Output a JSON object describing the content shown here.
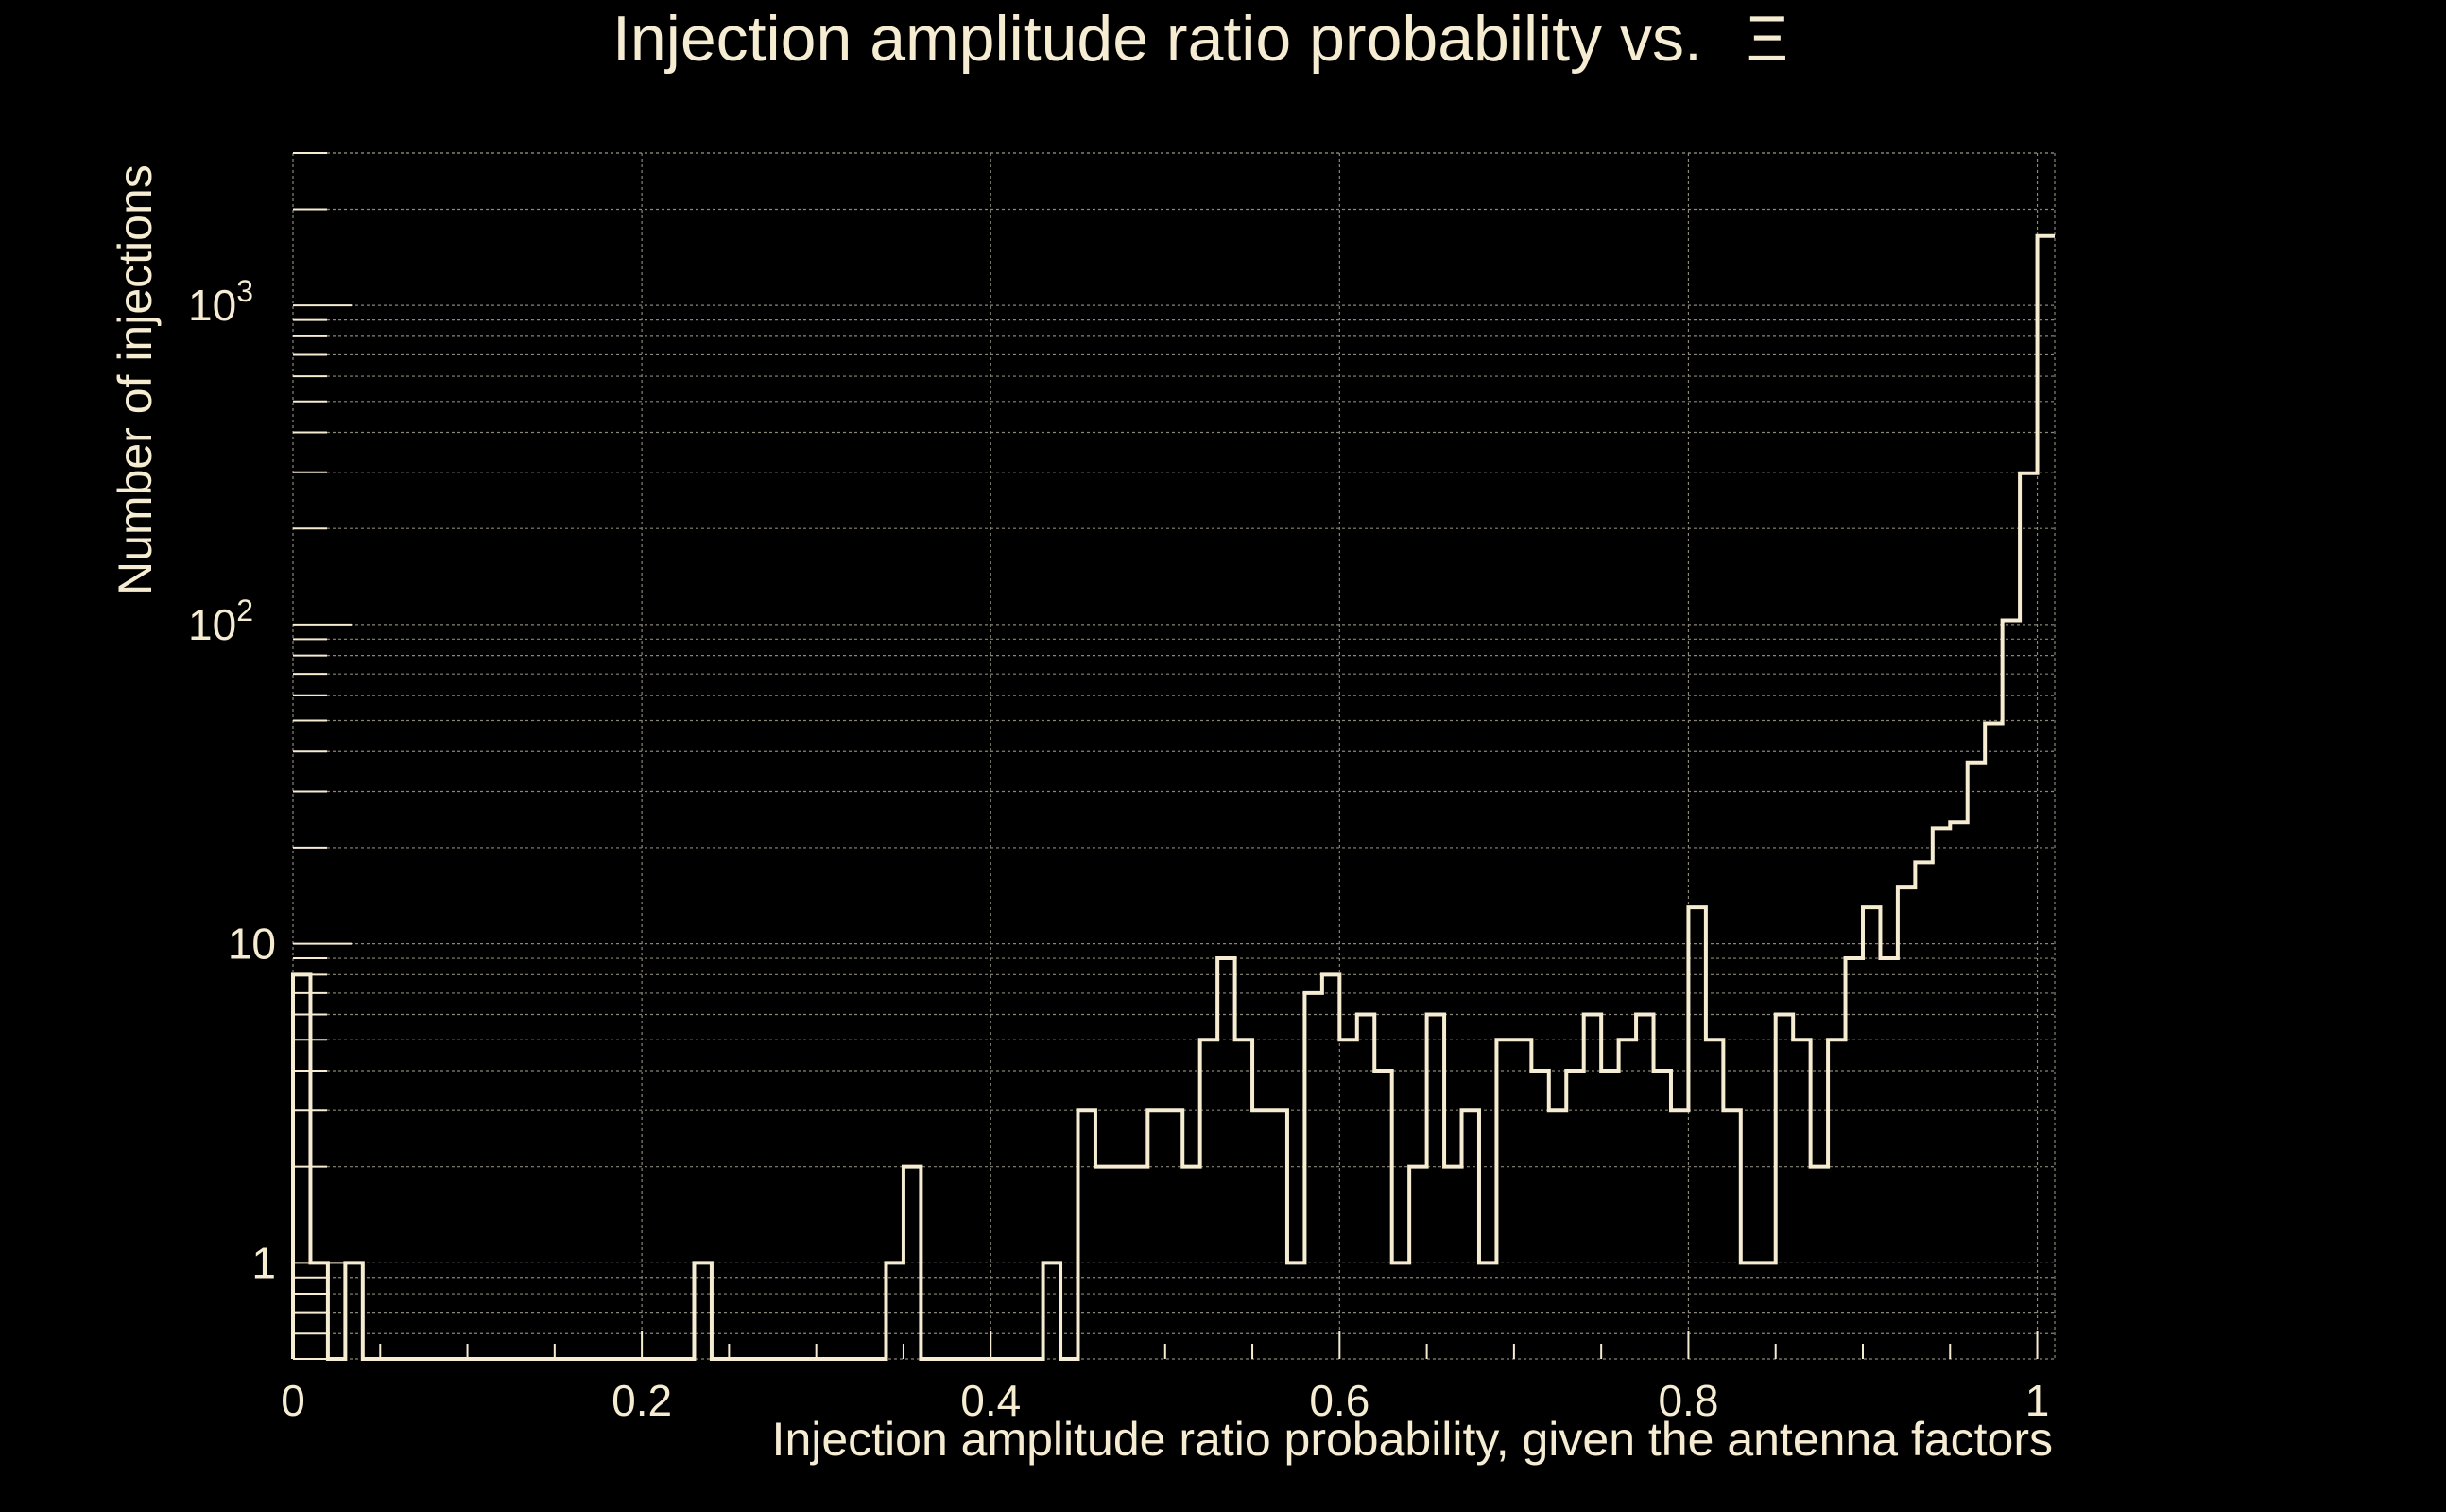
{
  "chart_data": {
    "type": "histogram",
    "title": "Injection amplitude ratio probability vs.",
    "title_symbol": "Ξ",
    "xlabel": "Injection amplitude ratio probability, given the antenna factors",
    "ylabel": "Number of injections",
    "yscale": "log",
    "xlim": [
      0,
      1.01
    ],
    "ylim": [
      0.5,
      3000
    ],
    "grid": true,
    "x_ticks": [
      {
        "value": 0,
        "label": "0"
      },
      {
        "value": 0.2,
        "label": "0.2"
      },
      {
        "value": 0.4,
        "label": "0.4"
      },
      {
        "value": 0.6,
        "label": "0.6"
      },
      {
        "value": 0.8,
        "label": "0.8"
      },
      {
        "value": 1,
        "label": "1"
      }
    ],
    "y_ticks": [
      {
        "value": 1,
        "base": "1",
        "exp": ""
      },
      {
        "value": 10,
        "base": "10",
        "exp": ""
      },
      {
        "value": 100,
        "base": "10",
        "exp": "2"
      },
      {
        "value": 1000,
        "base": "10",
        "exp": "3"
      }
    ],
    "bin_width": 0.01,
    "bin_start": 0,
    "counts": [
      8,
      1,
      0,
      1,
      0,
      0,
      0,
      0,
      0,
      0,
      0,
      0,
      0,
      0,
      0,
      0,
      0,
      0,
      0,
      0,
      0,
      0,
      0,
      1,
      0,
      0,
      0,
      0,
      0,
      0,
      0,
      0,
      0,
      0,
      1,
      2,
      0,
      0,
      0,
      0,
      0,
      0,
      0,
      1,
      0,
      3,
      2,
      2,
      2,
      3,
      3,
      2,
      5,
      9,
      5,
      3,
      3,
      1,
      7,
      8,
      5,
      6,
      4,
      1,
      2,
      6,
      2,
      3,
      1,
      5,
      5,
      4,
      3,
      4,
      6,
      4,
      5,
      6,
      4,
      3,
      13,
      5,
      3,
      1,
      1,
      6,
      5,
      2,
      5,
      9,
      13,
      9,
      15,
      18,
      23,
      24,
      37,
      49,
      103,
      298,
      1650
    ]
  }
}
